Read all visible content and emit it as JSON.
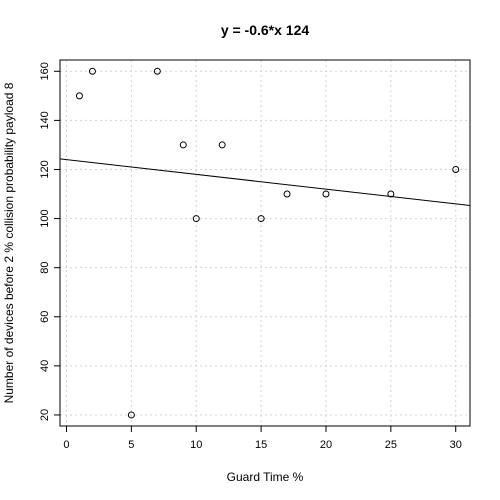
{
  "chart_data": {
    "type": "scatter",
    "title": "y = -0.6*x 124",
    "xlabel": "Guard Time %",
    "ylabel": "Number of devices before  2 % collision probability payload 8",
    "xlim": [
      -0.5,
      31.1
    ],
    "ylim": [
      15.5,
      164.6
    ],
    "xticks": [
      0,
      5,
      10,
      15,
      20,
      25,
      30
    ],
    "yticks": [
      20,
      40,
      60,
      80,
      100,
      120,
      140,
      160
    ],
    "grid": true,
    "points": [
      {
        "x": 1,
        "y": 150
      },
      {
        "x": 2,
        "y": 160
      },
      {
        "x": 5,
        "y": 20
      },
      {
        "x": 7,
        "y": 160
      },
      {
        "x": 9,
        "y": 130
      },
      {
        "x": 10,
        "y": 100
      },
      {
        "x": 12,
        "y": 130
      },
      {
        "x": 15,
        "y": 100
      },
      {
        "x": 17,
        "y": 110
      },
      {
        "x": 20,
        "y": 110
      },
      {
        "x": 25,
        "y": 110
      },
      {
        "x": 30,
        "y": 120
      }
    ],
    "regression": {
      "slope": -0.6,
      "intercept": 124
    }
  }
}
